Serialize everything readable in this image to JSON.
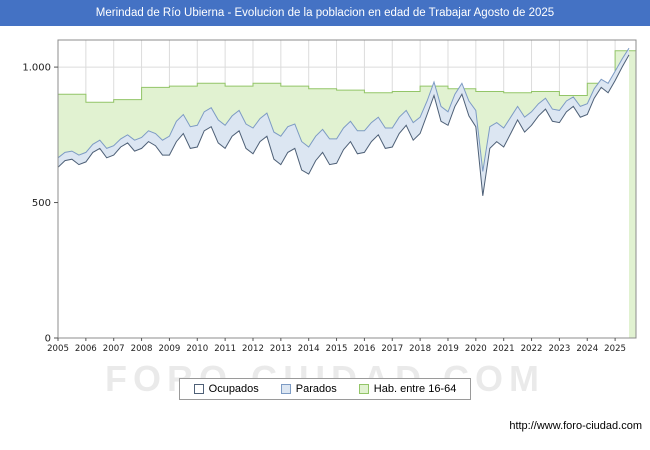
{
  "title_bar": {
    "title": "Merindad de Río Ubierna - Evolucion de la poblacion en edad de Trabajar Agosto de 2025",
    "bg_color": "#4472c4"
  },
  "watermark": "FORO-CIUDAD.COM",
  "footer": {
    "url": "http://www.foro-ciudad.com"
  },
  "chart_data": {
    "type": "area",
    "title": "Merindad de Río Ubierna - Evolucion de la poblacion en edad de Trabajar Agosto de 2025",
    "xlabel": "",
    "ylabel": "",
    "legend_position": "bottom",
    "grid": true,
    "ylim": [
      0,
      1100
    ],
    "x_start": 2005,
    "x_step": 0.25,
    "x_tick_years": [
      "2005",
      "2006",
      "2007",
      "2008",
      "2009",
      "2010",
      "2011",
      "2012",
      "2013",
      "2014",
      "2015",
      "2016",
      "2017",
      "2018",
      "2019",
      "2020",
      "2021",
      "2022",
      "2023",
      "2024",
      "2025"
    ],
    "y_ticks": [
      {
        "value": 0,
        "label": "0"
      },
      {
        "value": 500,
        "label": "500"
      },
      {
        "value": 1000,
        "label": "1.000"
      }
    ],
    "stacking": "ocupados + parados stacked; hab_16_64 is total working-age population drawn behind",
    "series": [
      {
        "name": "Ocupados",
        "fill": "#ffffff",
        "stroke": "#4e6077",
        "cadence": "quarterly",
        "values": [
          630,
          655,
          660,
          640,
          650,
          685,
          700,
          665,
          675,
          705,
          720,
          690,
          700,
          725,
          710,
          675,
          675,
          725,
          755,
          700,
          705,
          765,
          780,
          720,
          700,
          745,
          765,
          700,
          680,
          725,
          745,
          660,
          640,
          685,
          700,
          620,
          605,
          655,
          685,
          640,
          645,
          695,
          725,
          680,
          685,
          725,
          750,
          700,
          705,
          755,
          785,
          730,
          755,
          825,
          895,
          800,
          785,
          855,
          900,
          820,
          780,
          525,
          700,
          725,
          705,
          755,
          805,
          760,
          785,
          820,
          845,
          800,
          795,
          835,
          855,
          815,
          825,
          885,
          925,
          905,
          950,
          1000,
          1045
        ]
      },
      {
        "name": "Parados",
        "fill": "#dce6f2",
        "stroke": "#7d9bc4",
        "cadence": "quarterly",
        "values": [
          35,
          30,
          30,
          35,
          35,
          30,
          30,
          35,
          35,
          30,
          30,
          40,
          40,
          40,
          45,
          55,
          70,
          75,
          70,
          80,
          80,
          70,
          70,
          85,
          85,
          75,
          75,
          90,
          95,
          85,
          85,
          100,
          105,
          95,
          90,
          105,
          100,
          90,
          85,
          95,
          90,
          80,
          75,
          85,
          80,
          70,
          65,
          75,
          70,
          60,
          55,
          65,
          60,
          50,
          50,
          55,
          50,
          45,
          40,
          55,
          60,
          90,
          80,
          70,
          70,
          60,
          50,
          55,
          50,
          45,
          40,
          45,
          45,
          40,
          35,
          40,
          40,
          35,
          30,
          35,
          35,
          30,
          25
        ]
      },
      {
        "name": "Hab. entre 16-64",
        "fill": "#e1f2d1",
        "stroke": "#93c568",
        "cadence": "yearly",
        "values": [
          900,
          870,
          880,
          925,
          930,
          940,
          930,
          940,
          930,
          920,
          915,
          905,
          910,
          930,
          920,
          910,
          905,
          910,
          895,
          940,
          1060
        ]
      }
    ]
  }
}
